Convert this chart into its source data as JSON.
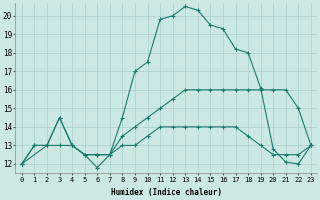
{
  "xlabel": "Humidex (Indice chaleur)",
  "bg_color": "#cce8e4",
  "grid_color": "#aacfcc",
  "line_color": "#1a7a6e",
  "xlim": [
    -0.5,
    23.5
  ],
  "ylim": [
    11.5,
    20.7
  ],
  "xticks": [
    0,
    1,
    2,
    3,
    4,
    5,
    6,
    7,
    8,
    9,
    10,
    11,
    12,
    13,
    14,
    15,
    16,
    17,
    18,
    19,
    20,
    21,
    22,
    23
  ],
  "yticks": [
    12,
    13,
    14,
    15,
    16,
    17,
    18,
    19,
    20
  ],
  "lines": [
    {
      "x": [
        0,
        1,
        2,
        3,
        4,
        5,
        6,
        7,
        8,
        9,
        10,
        11,
        12,
        13,
        14,
        15,
        16,
        17,
        18,
        19,
        20,
        21,
        22,
        23
      ],
      "y": [
        12,
        13,
        13,
        14.5,
        13,
        12.5,
        12.5,
        12.5,
        13,
        13,
        13.5,
        14,
        14,
        14,
        14,
        14,
        14,
        14,
        13.5,
        13,
        12.5,
        12.5,
        12.5,
        13
      ]
    },
    {
      "x": [
        0,
        1,
        2,
        3,
        4,
        5,
        6,
        7,
        8,
        9,
        10,
        11,
        12,
        13,
        14,
        15,
        16,
        17,
        18,
        19,
        20,
        21,
        22,
        23
      ],
      "y": [
        12,
        13,
        13,
        13,
        13,
        12.5,
        12.5,
        12.5,
        13.5,
        14,
        14.5,
        15,
        15.5,
        16,
        16,
        16,
        16,
        16,
        16,
        16,
        16,
        16,
        15,
        13
      ]
    },
    {
      "x": [
        0,
        2,
        3,
        4,
        5,
        6,
        7,
        8,
        9,
        10,
        11,
        12,
        13,
        14,
        15,
        16,
        17,
        18,
        19,
        20,
        21,
        22,
        23
      ],
      "y": [
        12,
        13,
        14.5,
        13,
        12.5,
        11.8,
        12.5,
        14.5,
        17.0,
        17.5,
        19.8,
        20,
        20.5,
        20.3,
        19.5,
        19.3,
        18.2,
        18,
        16.1,
        12.8,
        12.1,
        12,
        13
      ]
    }
  ]
}
